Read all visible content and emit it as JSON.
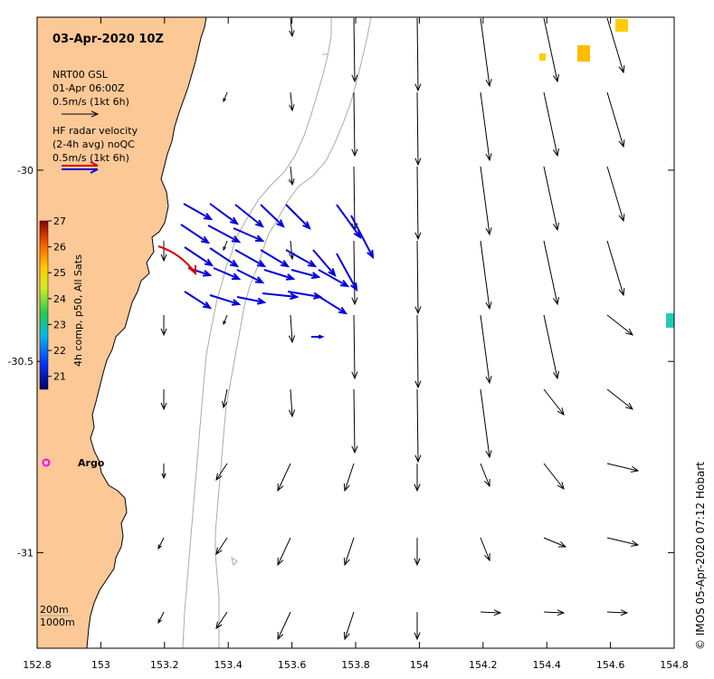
{
  "map": {
    "title": "03-Apr-2020 10Z",
    "lon_range": [
      152.8,
      154.8
    ],
    "lat_range": [
      -31.25,
      -29.6
    ],
    "x_ticks": [
      152.8,
      153,
      153.2,
      153.4,
      153.6,
      153.8,
      154,
      154.2,
      154.4,
      154.6,
      154.8
    ],
    "x_tick_labels": [
      "152.8",
      "153",
      "153.2",
      "153.4",
      "153.6",
      "153.8",
      "154",
      "154.2",
      "154.4",
      "154.6",
      "154.8"
    ],
    "y_ticks": [
      -30,
      -30.5,
      -31
    ],
    "y_tick_labels": [
      "-30",
      "-30.5",
      "-31"
    ]
  },
  "legend": {
    "model_name": "NRT00 GSL",
    "model_time": "01-Apr 06:00Z",
    "model_scale": "0.5m/s (1kt 6h)",
    "radar_line1": "HF radar velocity",
    "radar_line2": "(2-4h avg) noQC",
    "radar_scale": "0.5m/s (1kt 6h)",
    "model_color": "#000000",
    "radar_color": "#0000dd",
    "track_color": "#dd0000"
  },
  "colorbar": {
    "label": "4h comp, p50, All Sats",
    "ticks": [
      "27",
      "26",
      "25",
      "24",
      "23",
      "22",
      "21"
    ],
    "min": 20.5,
    "max": 27
  },
  "argo": {
    "label": "Argo",
    "color": "#ff00ff"
  },
  "bathymetry": {
    "label_200": "200m",
    "label_1000": "1000m"
  },
  "credit": "© IMOS 05-Apr-2020 07:12 Hobart",
  "colors": {
    "land": "#fcc896",
    "coast": "#000000",
    "isobath": "#aaaaaa"
  }
}
